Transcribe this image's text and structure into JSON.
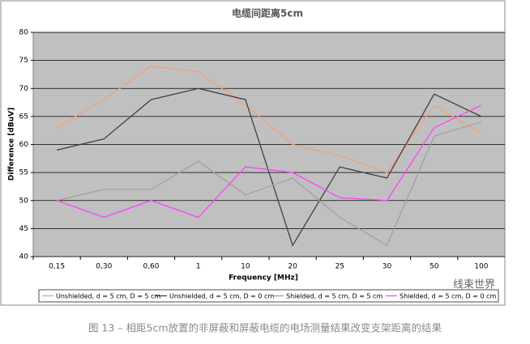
{
  "chart_data": {
    "type": "line",
    "title": "电缆间距离5cm",
    "x_label": "Frequency [MHz]",
    "y_label": "Difference [dBuV]",
    "categories": [
      "0,15",
      "0,30",
      "0,60",
      "1",
      "10",
      "20",
      "25",
      "30",
      "50",
      "100"
    ],
    "series": [
      {
        "name": "Unshielded, d = 5 cm,  D = 5 cm",
        "color": "#f4a070",
        "values": [
          63,
          68,
          74,
          73,
          67,
          60,
          58,
          55,
          67,
          62
        ]
      },
      {
        "name": "Unshielded, d = 5 cm, D = 0 cm",
        "color": "#404040",
        "values": [
          59,
          61,
          68,
          70,
          68,
          42,
          56,
          54,
          69,
          65
        ]
      },
      {
        "name": "Shielded, d = 5 cm, D = 5 cm",
        "color": "#a0a0a0",
        "values": [
          50,
          52,
          52,
          57,
          51,
          54,
          47,
          42,
          61.5,
          64
        ]
      },
      {
        "name": "Shielded, d = 5 cm, D = 0 cm",
        "color": "#ff40ff",
        "values": [
          50,
          47,
          50,
          47,
          56,
          55,
          50.5,
          50,
          63,
          67
        ]
      }
    ],
    "ylim": [
      40,
      80
    ],
    "yticks": [
      40,
      45,
      50,
      55,
      60,
      65,
      70,
      75,
      80
    ],
    "grid": true,
    "legend": "bottom"
  },
  "caption": "图 13 – 相距5cm放置的非屏蔽和屏蔽电缆的电场测量结果改变支架距离的结果",
  "watermark": "线束世界"
}
